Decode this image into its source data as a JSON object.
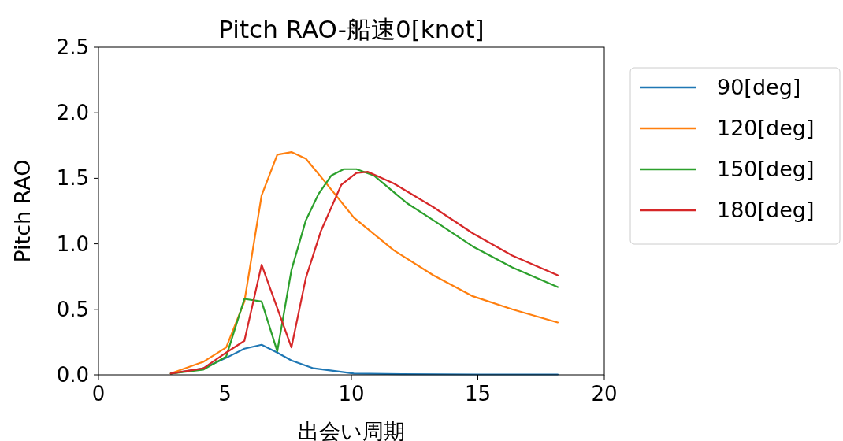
{
  "chart_data": {
    "type": "line",
    "title": "Pitch RAO-船速0[knot]",
    "xlabel": "出会い周期",
    "ylabel": "Pitch RAO",
    "xlim": [
      0,
      20
    ],
    "xticks": [
      0,
      5,
      10,
      15,
      20
    ],
    "ylim": [
      0,
      2.5
    ],
    "yticks": [
      {
        "value": 0,
        "label": "0.0"
      },
      {
        "value": 0.5,
        "label": "0.5"
      },
      {
        "value": 1,
        "label": "1.0"
      },
      {
        "value": 1.5,
        "label": "1.5"
      },
      {
        "value": 2,
        "label": "2.0"
      },
      {
        "value": 2.5,
        "label": "2.5"
      }
    ],
    "grid": false,
    "legend": "top right",
    "marker": "none",
    "line_style": "solid",
    "series": [
      {
        "name": "90[deg]",
        "color": "#1f77b4",
        "x": [
          2.86,
          4.15,
          5.05,
          5.77,
          6.45,
          7.07,
          7.63,
          8.5,
          9.7,
          10.1,
          12.0,
          15.0,
          18.16
        ],
        "values": [
          0.01,
          0.05,
          0.13,
          0.2,
          0.23,
          0.17,
          0.11,
          0.05,
          0.02,
          0.01,
          0.005,
          0.003,
          0.003
        ]
      },
      {
        "name": "120[deg]",
        "color": "#ff7f0e",
        "x": [
          2.86,
          4.15,
          5.05,
          5.77,
          6.45,
          7.07,
          7.63,
          8.2,
          8.97,
          10.1,
          11.68,
          13.24,
          14.8,
          16.36,
          18.16
        ],
        "values": [
          0.01,
          0.1,
          0.21,
          0.56,
          1.37,
          1.68,
          1.7,
          1.65,
          1.47,
          1.2,
          0.95,
          0.76,
          0.6,
          0.5,
          0.4
        ]
      },
      {
        "name": "150[deg]",
        "color": "#2ca02c",
        "x": [
          2.86,
          4.15,
          5.05,
          5.77,
          6.45,
          7.07,
          7.63,
          8.2,
          8.7,
          9.2,
          9.7,
          10.2,
          10.9,
          12.2,
          13.24,
          14.8,
          16.36,
          18.16
        ],
        "values": [
          0.01,
          0.04,
          0.14,
          0.58,
          0.56,
          0.18,
          0.8,
          1.18,
          1.38,
          1.52,
          1.57,
          1.57,
          1.52,
          1.31,
          1.18,
          0.98,
          0.82,
          0.67
        ]
      },
      {
        "name": "180[deg]",
        "color": "#d62728",
        "x": [
          2.86,
          4.15,
          5.05,
          5.77,
          6.45,
          7.63,
          8.2,
          8.8,
          9.6,
          10.2,
          10.64,
          11.68,
          13.24,
          14.8,
          16.36,
          18.16
        ],
        "values": [
          0.01,
          0.05,
          0.17,
          0.26,
          0.84,
          0.21,
          0.74,
          1.1,
          1.45,
          1.54,
          1.55,
          1.46,
          1.28,
          1.08,
          0.91,
          0.76
        ]
      }
    ]
  }
}
